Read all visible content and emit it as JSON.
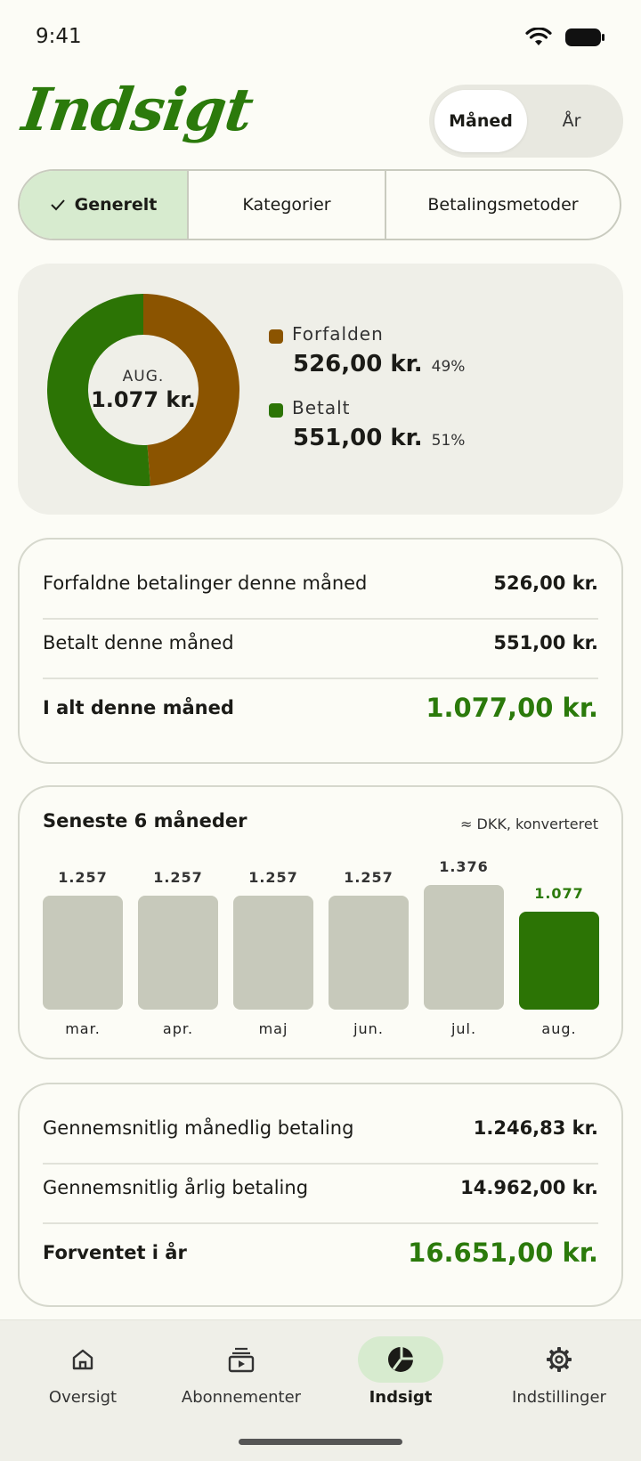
{
  "status_bar": {
    "time": "9:41"
  },
  "app": {
    "title": "Indsigt"
  },
  "period_toggle": {
    "options": [
      "Måned",
      "År"
    ],
    "selected": "Måned"
  },
  "tabs": [
    {
      "label": "Generelt",
      "selected": true
    },
    {
      "label": "Kategorier",
      "selected": false
    },
    {
      "label": "Betalingsmetoder",
      "selected": false
    }
  ],
  "donut": {
    "center_label": "AUG.",
    "center_total": "1.077 kr.",
    "segments": [
      {
        "name": "Forfalden",
        "amount": "526,00 kr.",
        "percent_label": "49%",
        "value": 526,
        "color": "#8b5400"
      },
      {
        "name": "Betalt",
        "amount": "551,00 kr.",
        "percent_label": "51%",
        "value": 551,
        "color": "#2c7405"
      }
    ]
  },
  "month_summary": {
    "rows": [
      {
        "label": "Forfaldne betalinger denne måned",
        "value": "526,00 kr."
      },
      {
        "label": "Betalt denne måned",
        "value": "551,00 kr."
      }
    ],
    "total": {
      "label": "I alt denne måned",
      "value": "1.077,00 kr."
    }
  },
  "chart_data": {
    "type": "bar",
    "title": "Seneste 6 måneder",
    "note": "≈ DKK, konverteret",
    "categories": [
      "mar.",
      "apr.",
      "maj",
      "jun.",
      "jul.",
      "aug."
    ],
    "values": [
      1257,
      1257,
      1257,
      1257,
      1376,
      1077
    ],
    "value_labels": [
      "1.257",
      "1.257",
      "1.257",
      "1.257",
      "1.376",
      "1.077"
    ],
    "highlight_index": 5,
    "colors": {
      "bar": "#c7c9bb",
      "highlight": "#2c7405"
    }
  },
  "averages": {
    "rows": [
      {
        "label": "Gennemsnitlig månedlig betaling",
        "value": "1.246,83 kr."
      },
      {
        "label": "Gennemsnitlig årlig betaling",
        "value": "14.962,00 kr."
      }
    ],
    "total": {
      "label": "Forventet i år",
      "value": "16.651,00 kr."
    }
  },
  "bottom_nav": [
    {
      "label": "Oversigt",
      "icon": "home-icon",
      "active": false
    },
    {
      "label": "Abonnementer",
      "icon": "subscriptions-icon",
      "active": false
    },
    {
      "label": "Indsigt",
      "icon": "pie-chart-icon",
      "active": true
    },
    {
      "label": "Indstillinger",
      "icon": "gear-icon",
      "active": false
    }
  ],
  "colors": {
    "accent": "#2b7a0b",
    "due": "#8b5400",
    "paid": "#2c7405"
  }
}
